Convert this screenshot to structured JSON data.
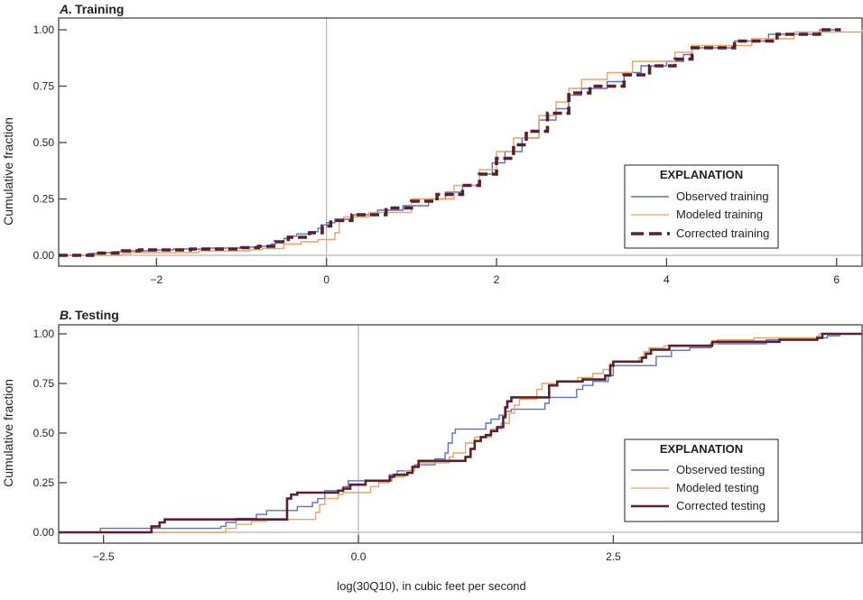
{
  "colors": {
    "observed": "#5b72c2",
    "modeled": "#e8a463",
    "corrected": "#5c1f2e",
    "zero_line": "#b5b5b5"
  },
  "xlabel": "log(30Q10), in cubic feet per second",
  "chart_data": [
    {
      "type": "line",
      "step": true,
      "title_letter": "A.",
      "title": "Training",
      "ylabel": "Cumulative fraction",
      "xlim": [
        -3.15,
        6.3
      ],
      "ylim": [
        -0.05,
        1.05
      ],
      "xticks": [
        -2,
        0,
        2,
        4,
        6
      ],
      "xtick_labels": [
        "−2",
        "0",
        "2",
        "4",
        "6"
      ],
      "yticks": [
        0,
        0.25,
        0.5,
        0.75,
        1
      ],
      "ytick_labels": [
        "0.00",
        "0.25",
        "0.50",
        "0.75",
        "1.00"
      ],
      "legend": {
        "title": "EXPLANATION",
        "placement": "lower-right"
      },
      "series": [
        {
          "name": "Observed training",
          "key": "observed",
          "style": "solid-thin",
          "points": [
            [
              -3.15,
              0
            ],
            [
              -2.8,
              0.008
            ],
            [
              -2.6,
              0.012
            ],
            [
              -2.5,
              0.016
            ],
            [
              -2.3,
              0.02
            ],
            [
              -2.0,
              0.024
            ],
            [
              -1.8,
              0.028
            ],
            [
              -1.4,
              0.032
            ],
            [
              -1.0,
              0.036
            ],
            [
              -0.8,
              0.04
            ],
            [
              -0.65,
              0.05
            ],
            [
              -0.6,
              0.06
            ],
            [
              -0.5,
              0.075
            ],
            [
              -0.45,
              0.085
            ],
            [
              -0.35,
              0.095
            ],
            [
              -0.2,
              0.105
            ],
            [
              -0.1,
              0.12
            ],
            [
              -0.05,
              0.135
            ],
            [
              0,
              0.145
            ],
            [
              0.1,
              0.16
            ],
            [
              0.3,
              0.18
            ],
            [
              0.6,
              0.2
            ],
            [
              0.9,
              0.22
            ],
            [
              1.2,
              0.25
            ],
            [
              1.4,
              0.28
            ],
            [
              1.6,
              0.31
            ],
            [
              1.8,
              0.36
            ],
            [
              1.95,
              0.41
            ],
            [
              2.1,
              0.46
            ],
            [
              2.3,
              0.52
            ],
            [
              2.5,
              0.6
            ],
            [
              2.7,
              0.65
            ],
            [
              2.85,
              0.71
            ],
            [
              3.0,
              0.74
            ],
            [
              3.3,
              0.77
            ],
            [
              3.5,
              0.81
            ],
            [
              3.7,
              0.84
            ],
            [
              4.0,
              0.86
            ],
            [
              4.2,
              0.89
            ],
            [
              4.3,
              0.92
            ],
            [
              4.8,
              0.95
            ],
            [
              5.2,
              0.98
            ],
            [
              5.8,
              1.0
            ]
          ]
        },
        {
          "name": "Modeled training",
          "key": "modeled",
          "style": "solid-thin",
          "points": [
            [
              -3.15,
              0
            ],
            [
              -2.4,
              0.008
            ],
            [
              -2.3,
              0.012
            ],
            [
              -1.5,
              0.02
            ],
            [
              -0.9,
              0.025
            ],
            [
              -0.75,
              0.03
            ],
            [
              -0.5,
              0.05
            ],
            [
              -0.3,
              0.06
            ],
            [
              -0.1,
              0.07
            ],
            [
              0.1,
              0.1
            ],
            [
              0.15,
              0.15
            ],
            [
              0.2,
              0.17
            ],
            [
              0.5,
              0.19
            ],
            [
              1.0,
              0.25
            ],
            [
              1.5,
              0.31
            ],
            [
              1.8,
              0.38
            ],
            [
              2.0,
              0.46
            ],
            [
              2.2,
              0.52
            ],
            [
              2.5,
              0.62
            ],
            [
              2.7,
              0.68
            ],
            [
              2.85,
              0.74
            ],
            [
              3.0,
              0.78
            ],
            [
              3.3,
              0.81
            ],
            [
              3.6,
              0.86
            ],
            [
              4.1,
              0.9
            ],
            [
              4.3,
              0.93
            ],
            [
              5.0,
              0.96
            ],
            [
              5.5,
              0.99
            ],
            [
              6.3,
              1.0
            ]
          ]
        },
        {
          "name": "Corrected training",
          "key": "corrected",
          "style": "dashed-thick",
          "points": [
            [
              -3.15,
              0
            ],
            [
              -2.75,
              0.01
            ],
            [
              -2.4,
              0.02
            ],
            [
              -2.2,
              0.024
            ],
            [
              -1.6,
              0.028
            ],
            [
              -1.0,
              0.034
            ],
            [
              -0.8,
              0.04
            ],
            [
              -0.6,
              0.06
            ],
            [
              -0.45,
              0.08
            ],
            [
              -0.2,
              0.1
            ],
            [
              -0.05,
              0.13
            ],
            [
              0.05,
              0.155
            ],
            [
              0.3,
              0.18
            ],
            [
              0.7,
              0.21
            ],
            [
              1.0,
              0.24
            ],
            [
              1.3,
              0.27
            ],
            [
              1.6,
              0.31
            ],
            [
              1.8,
              0.36
            ],
            [
              2.0,
              0.43
            ],
            [
              2.2,
              0.49
            ],
            [
              2.35,
              0.55
            ],
            [
              2.6,
              0.63
            ],
            [
              2.85,
              0.72
            ],
            [
              3.1,
              0.75
            ],
            [
              3.5,
              0.8
            ],
            [
              3.8,
              0.84
            ],
            [
              4.1,
              0.87
            ],
            [
              4.3,
              0.92
            ],
            [
              4.8,
              0.95
            ],
            [
              5.3,
              0.98
            ],
            [
              5.8,
              1.0
            ]
          ]
        }
      ]
    },
    {
      "type": "line",
      "step": true,
      "title_letter": "B.",
      "title": "Testing",
      "ylabel": "Cumulative fraction",
      "xlim": [
        -2.94,
        4.94
      ],
      "ylim": [
        -0.05,
        1.06
      ],
      "xticks": [
        -2.5,
        0,
        2.5
      ],
      "xtick_labels": [
        "−2.5",
        "0.0",
        "2.5"
      ],
      "yticks": [
        0,
        0.25,
        0.5,
        0.75,
        1
      ],
      "ytick_labels": [
        "0.00",
        "0.25",
        "0.50",
        "0.75",
        "1.00"
      ],
      "legend": {
        "title": "EXPLANATION",
        "placement": "lower-right"
      },
      "series": [
        {
          "name": "Observed testing",
          "key": "observed",
          "style": "solid-thin",
          "points": [
            [
              -2.94,
              0
            ],
            [
              -2.53,
              0.02
            ],
            [
              -1.35,
              0.03
            ],
            [
              -1.3,
              0.05
            ],
            [
              -1.2,
              0.07
            ],
            [
              -1.0,
              0.09
            ],
            [
              -0.9,
              0.11
            ],
            [
              -0.6,
              0.13
            ],
            [
              -0.45,
              0.15
            ],
            [
              -0.4,
              0.17
            ],
            [
              -0.33,
              0.21
            ],
            [
              -0.15,
              0.23
            ],
            [
              -0.1,
              0.26
            ],
            [
              0.3,
              0.29
            ],
            [
              0.38,
              0.31
            ],
            [
              0.55,
              0.34
            ],
            [
              0.75,
              0.37
            ],
            [
              0.85,
              0.4
            ],
            [
              0.88,
              0.45
            ],
            [
              0.92,
              0.5
            ],
            [
              0.95,
              0.52
            ],
            [
              1.25,
              0.55
            ],
            [
              1.3,
              0.57
            ],
            [
              1.38,
              0.59
            ],
            [
              1.45,
              0.61
            ],
            [
              1.5,
              0.62
            ],
            [
              1.83,
              0.65
            ],
            [
              1.87,
              0.68
            ],
            [
              2.14,
              0.72
            ],
            [
              2.2,
              0.74
            ],
            [
              2.3,
              0.76
            ],
            [
              2.45,
              0.79
            ],
            [
              2.5,
              0.84
            ],
            [
              2.92,
              0.886
            ],
            [
              3.07,
              0.917
            ],
            [
              3.25,
              0.93
            ],
            [
              3.46,
              0.95
            ],
            [
              4.0,
              0.97
            ],
            [
              4.5,
              0.98
            ],
            [
              4.6,
              0.99
            ],
            [
              4.72,
              1.0
            ]
          ]
        },
        {
          "name": "Modeled testing",
          "key": "modeled",
          "style": "solid-thin",
          "points": [
            [
              -2.94,
              0
            ],
            [
              -1.3,
              0.02
            ],
            [
              -1.2,
              0.04
            ],
            [
              -1.05,
              0.055
            ],
            [
              -0.9,
              0.065
            ],
            [
              -0.42,
              0.1
            ],
            [
              -0.38,
              0.14
            ],
            [
              -0.33,
              0.17
            ],
            [
              -0.2,
              0.19
            ],
            [
              -0.15,
              0.2
            ],
            [
              0.12,
              0.23
            ],
            [
              0.2,
              0.25
            ],
            [
              0.3,
              0.26
            ],
            [
              0.33,
              0.28
            ],
            [
              0.45,
              0.31
            ],
            [
              0.55,
              0.33
            ],
            [
              0.6,
              0.35
            ],
            [
              0.89,
              0.38
            ],
            [
              0.93,
              0.4
            ],
            [
              1.05,
              0.45
            ],
            [
              1.14,
              0.48
            ],
            [
              1.3,
              0.52
            ],
            [
              1.4,
              0.55
            ],
            [
              1.48,
              0.6
            ],
            [
              1.53,
              0.64
            ],
            [
              1.58,
              0.67
            ],
            [
              1.75,
              0.72
            ],
            [
              1.8,
              0.75
            ],
            [
              1.95,
              0.76
            ],
            [
              2.15,
              0.78
            ],
            [
              2.3,
              0.8
            ],
            [
              2.4,
              0.82
            ],
            [
              2.47,
              0.85
            ],
            [
              2.5,
              0.86
            ],
            [
              2.75,
              0.88
            ],
            [
              2.8,
              0.91
            ],
            [
              2.85,
              0.93
            ],
            [
              3.0,
              0.94
            ],
            [
              3.45,
              0.95
            ],
            [
              3.52,
              0.97
            ],
            [
              3.88,
              0.98
            ],
            [
              4.5,
              0.99
            ],
            [
              4.52,
              1.0
            ]
          ]
        },
        {
          "name": "Corrected testing",
          "key": "corrected",
          "style": "solid-thick",
          "points": [
            [
              -2.94,
              0
            ],
            [
              -2.03,
              0.03
            ],
            [
              -1.95,
              0.05
            ],
            [
              -1.9,
              0.065
            ],
            [
              -0.7,
              0.17
            ],
            [
              -0.66,
              0.19
            ],
            [
              -0.6,
              0.2
            ],
            [
              -0.2,
              0.21
            ],
            [
              -0.15,
              0.22
            ],
            [
              -0.08,
              0.24
            ],
            [
              0.07,
              0.26
            ],
            [
              0.31,
              0.28
            ],
            [
              0.35,
              0.29
            ],
            [
              0.48,
              0.3
            ],
            [
              0.53,
              0.33
            ],
            [
              0.59,
              0.36
            ],
            [
              1.05,
              0.38
            ],
            [
              1.1,
              0.42
            ],
            [
              1.14,
              0.46
            ],
            [
              1.2,
              0.48
            ],
            [
              1.25,
              0.49
            ],
            [
              1.3,
              0.51
            ],
            [
              1.36,
              0.53
            ],
            [
              1.42,
              0.58
            ],
            [
              1.44,
              0.63
            ],
            [
              1.46,
              0.66
            ],
            [
              1.5,
              0.68
            ],
            [
              1.87,
              0.74
            ],
            [
              1.95,
              0.76
            ],
            [
              2.2,
              0.77
            ],
            [
              2.42,
              0.79
            ],
            [
              2.47,
              0.84
            ],
            [
              2.5,
              0.86
            ],
            [
              2.78,
              0.88
            ],
            [
              2.82,
              0.9
            ],
            [
              2.87,
              0.92
            ],
            [
              3.05,
              0.94
            ],
            [
              3.47,
              0.96
            ],
            [
              4.13,
              0.97
            ],
            [
              4.5,
              0.98
            ],
            [
              4.55,
              1.0
            ],
            [
              4.94,
              1.0
            ]
          ]
        }
      ]
    }
  ]
}
